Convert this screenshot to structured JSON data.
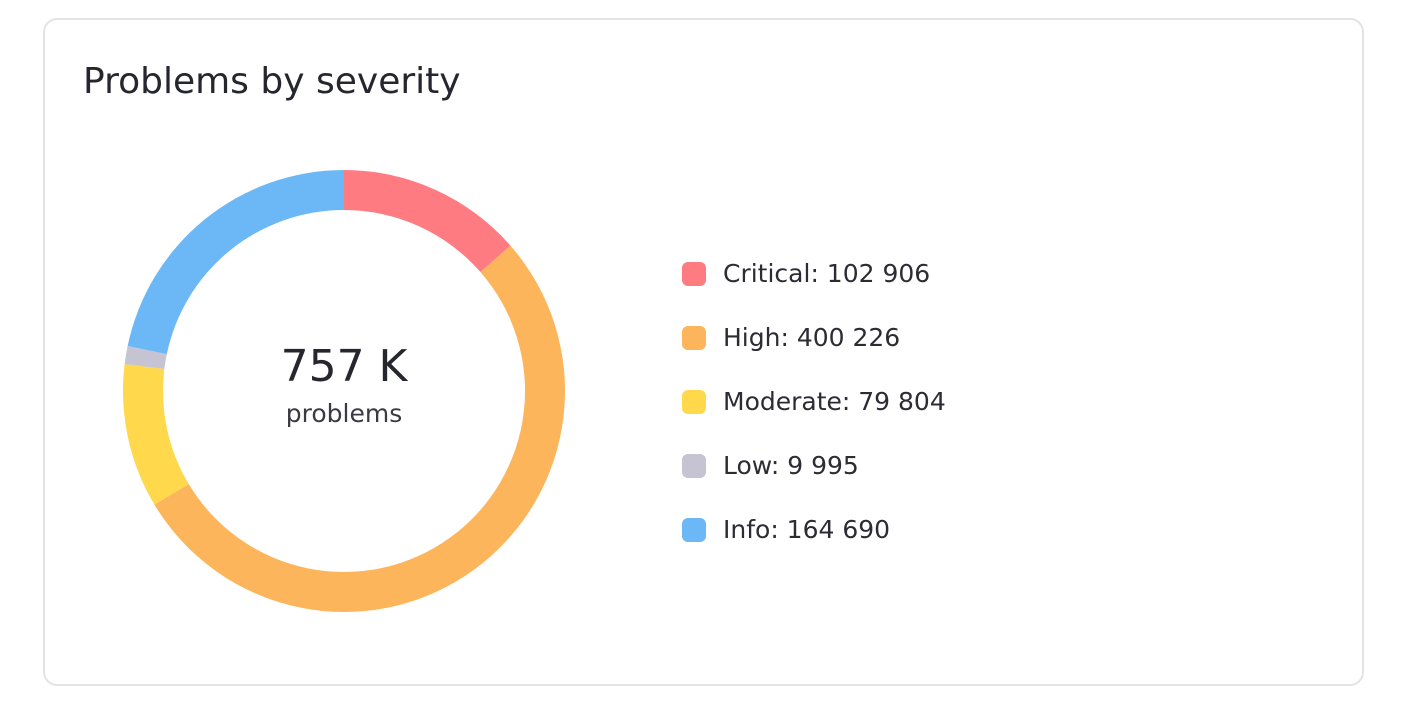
{
  "card": {
    "title": "Problems by severity"
  },
  "center": {
    "value": "757 K",
    "label": "problems"
  },
  "chart_data": {
    "type": "pie",
    "title": "Problems by severity",
    "legend": "right",
    "categories": [
      "Critical",
      "High",
      "Moderate",
      "Low",
      "Info"
    ],
    "values": [
      102906,
      400226,
      79804,
      9995,
      164690
    ],
    "colors": [
      "#ff7b82",
      "#fdb55b",
      "#ffd84c",
      "#c6c3d3",
      "#6cb8f6"
    ],
    "legend_labels": [
      "Critical: 102 906",
      "High: 400 226",
      "Moderate: 79 804",
      "Low: 9 995",
      "Info: 164 690"
    ]
  }
}
